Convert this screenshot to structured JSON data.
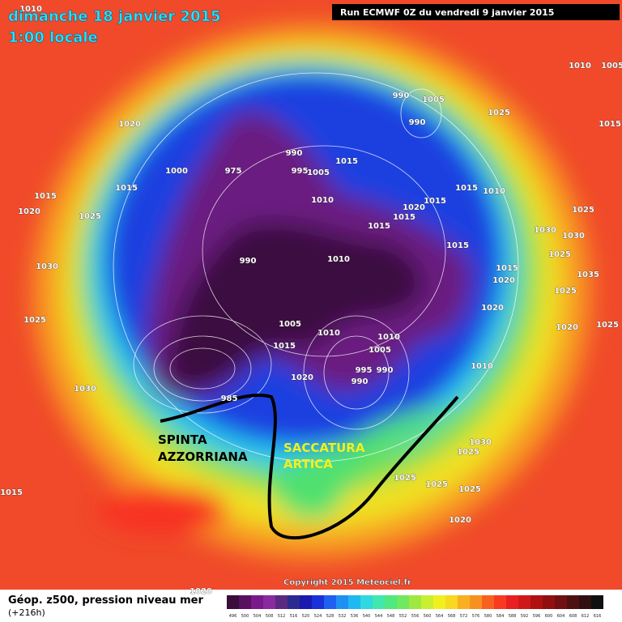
{
  "header": {
    "date": "dimanche 18 janvier 2015",
    "time": "1:00 locale",
    "run": "Run ECMWF 0Z du vendredi 9 janvier 2015"
  },
  "annotations": {
    "ridge": [
      "SPINTA",
      "AZZORRIANA"
    ],
    "trough": [
      "SACCATURA",
      "ARTICA"
    ]
  },
  "copyright": "Copyright 2015 Meteociel.fr",
  "legend": {
    "title": "Géop. z500, pression niveau mer",
    "lead": "(+216h)",
    "labels": [
      496,
      500,
      504,
      508,
      512,
      516,
      520,
      524,
      528,
      532,
      536,
      540,
      544,
      548,
      552,
      556,
      560,
      564,
      568,
      572,
      576,
      580,
      584,
      588,
      592,
      596,
      600,
      604,
      608,
      612,
      616
    ],
    "colors": [
      "#3a0d3a",
      "#5a1060",
      "#7a1a8a",
      "#8a2aa0",
      "#5a2a80",
      "#2a2a90",
      "#1a1ab0",
      "#1a30d8",
      "#2060f0",
      "#2090f0",
      "#20b8f0",
      "#30d8e0",
      "#40e8b0",
      "#50e880",
      "#70e860",
      "#a0e840",
      "#c8f030",
      "#f0f020",
      "#f8d820",
      "#f8b020",
      "#f89020",
      "#f86020",
      "#f83a20",
      "#e82020",
      "#d01818",
      "#b01010",
      "#901010",
      "#701010",
      "#501010",
      "#301010",
      "#101010"
    ]
  },
  "isobars": [
    1010,
    1005,
    1010,
    1020,
    1000,
    975,
    990,
    995,
    1005,
    1015,
    1020,
    1015,
    1025,
    1015,
    1010,
    1015,
    1015,
    1020,
    1015,
    1015,
    1010,
    1025,
    1015,
    990,
    990,
    1005,
    1030,
    1025,
    1030,
    1035,
    1025,
    1015,
    1015,
    1020,
    1025,
    1020,
    1010,
    990,
    1005,
    1015,
    1010,
    1010,
    1005,
    995,
    990,
    990,
    1020,
    1010,
    1025,
    1030,
    985,
    1030,
    1025,
    1025,
    1025,
    1025,
    1020,
    1015,
    1020,
    1025,
    1020,
    1030
  ]
}
